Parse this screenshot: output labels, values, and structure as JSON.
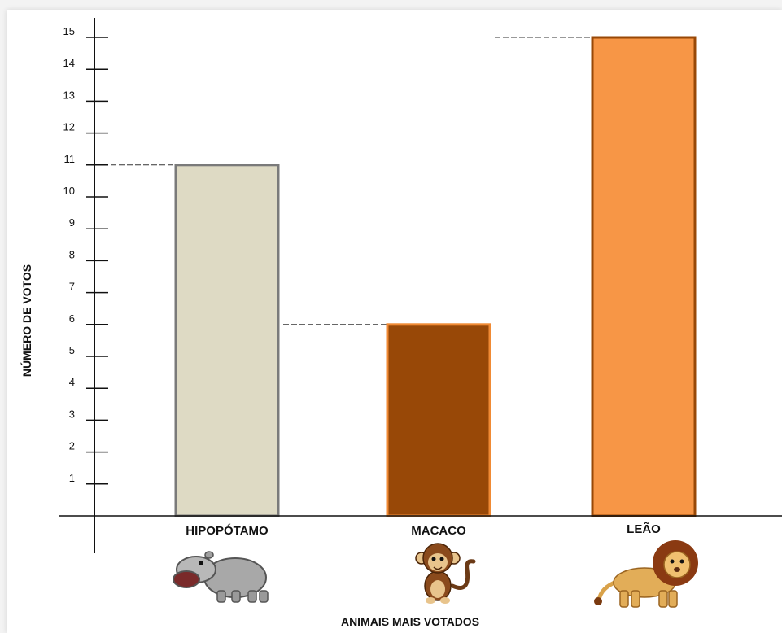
{
  "chart_data": {
    "type": "bar",
    "xlabel": "ANIMAIS MAIS VOTADOS",
    "ylabel": "NÚMERO DE VOTOS",
    "ylim": [
      0,
      15
    ],
    "y_ticks": [
      "1",
      "2",
      "3",
      "4",
      "5",
      "6",
      "7",
      "8",
      "9",
      "10",
      "11",
      "12",
      "13",
      "14",
      "15"
    ],
    "categories": [
      "HIPOPÓTAMO",
      "MACACO",
      "LEÃO"
    ],
    "values": [
      11,
      6,
      15
    ],
    "category_icons": [
      "hippo-icon",
      "monkey-icon",
      "lion-icon"
    ],
    "bar_colors": [
      {
        "fill": "#dedac4",
        "stroke": "#7a7a7a"
      },
      {
        "fill": "#984807",
        "stroke": "#f08a34"
      },
      {
        "fill": "#f79646",
        "stroke": "#984807"
      }
    ],
    "guide_lines": "dashed",
    "grid": false
  }
}
